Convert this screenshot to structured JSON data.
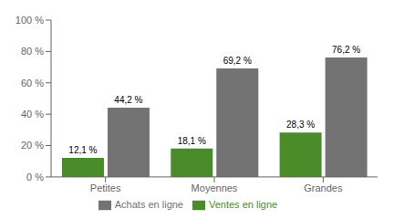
{
  "chart_data": {
    "type": "bar",
    "categories": [
      "Petites",
      "Moyennes",
      "Grandes"
    ],
    "series": [
      {
        "name": "Ventes en ligne",
        "color": "#4a8c2a",
        "values": [
          12.1,
          18.1,
          28.3
        ],
        "value_labels": [
          "12,1 %",
          "18,1 %",
          "28,3 %"
        ]
      },
      {
        "name": "Achats en ligne",
        "color": "#737373",
        "values": [
          44.2,
          69.2,
          76.2
        ],
        "value_labels": [
          "44,2 %",
          "69,2 %",
          "76,2 %"
        ]
      }
    ],
    "ylim": [
      0,
      100
    ],
    "yticks": [
      {
        "value": 0,
        "label": "0 %"
      },
      {
        "value": 20,
        "label": "20 %"
      },
      {
        "value": 40,
        "label": "40 %"
      },
      {
        "value": 60,
        "label": "60 %"
      },
      {
        "value": 80,
        "label": "80 %"
      },
      {
        "value": 100,
        "label": "100 %"
      }
    ],
    "grid": false,
    "legend": "bottom",
    "data_labels": true
  }
}
